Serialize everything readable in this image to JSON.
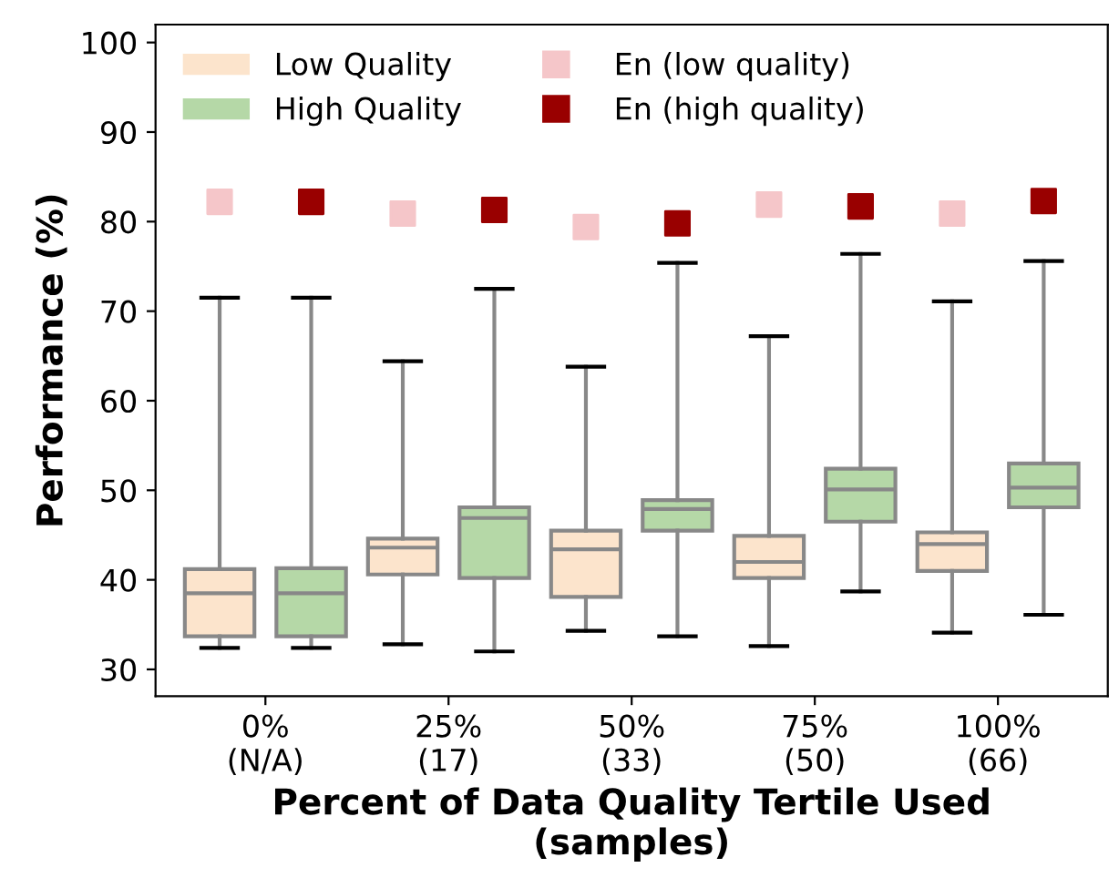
{
  "chart_data": {
    "type": "box",
    "xlabel": "Percent of Data Quality Tertile Used\n(samples)",
    "ylabel": "Performance (%)",
    "categories": [
      "0%\n(N/A)",
      "25%\n(17)",
      "50%\n(33)",
      "75%\n(50)",
      "100%\n(66)"
    ],
    "ylim": [
      27,
      102
    ],
    "yticks": [
      30,
      40,
      50,
      60,
      70,
      80,
      90,
      100
    ],
    "grid": false,
    "legend": "top left",
    "series": [
      {
        "name": "Low Quality",
        "color": "#fce4cc",
        "boxes": [
          {
            "low": 32.4,
            "q1": 33.7,
            "median": 38.5,
            "q3": 41.2,
            "high": 71.5
          },
          {
            "low": 32.8,
            "q1": 40.6,
            "median": 43.6,
            "q3": 44.6,
            "high": 64.4
          },
          {
            "low": 34.3,
            "q1": 38.1,
            "median": 43.4,
            "q3": 45.5,
            "high": 63.8
          },
          {
            "low": 32.6,
            "q1": 40.2,
            "median": 42.0,
            "q3": 44.9,
            "high": 67.2
          },
          {
            "low": 34.1,
            "q1": 41.0,
            "median": 44.0,
            "q3": 45.3,
            "high": 71.1
          }
        ]
      },
      {
        "name": "High Quality",
        "color": "#b5d8a7",
        "boxes": [
          {
            "low": 32.4,
            "q1": 33.7,
            "median": 38.5,
            "q3": 41.3,
            "high": 71.5
          },
          {
            "low": 32.0,
            "q1": 40.2,
            "median": 46.9,
            "q3": 48.1,
            "high": 72.5
          },
          {
            "low": 33.7,
            "q1": 45.5,
            "median": 47.9,
            "q3": 48.9,
            "high": 75.4
          },
          {
            "low": 38.7,
            "q1": 46.5,
            "median": 50.1,
            "q3": 52.4,
            "high": 76.4
          },
          {
            "low": 36.1,
            "q1": 48.1,
            "median": 50.3,
            "q3": 53.0,
            "high": 75.6
          }
        ]
      },
      {
        "name": "En (low quality)",
        "type": "scatter",
        "marker": "square",
        "color": "#f5c6c9",
        "x": [
          "0%\n(N/A)",
          "25%\n(17)",
          "50%\n(33)",
          "75%\n(50)",
          "100%\n(66)"
        ],
        "values": [
          82.2,
          80.9,
          79.4,
          81.9,
          80.9
        ]
      },
      {
        "name": "En (high quality)",
        "type": "scatter",
        "marker": "square",
        "color": "#990000",
        "x": [
          "0%\n(N/A)",
          "25%\n(17)",
          "50%\n(33)",
          "75%\n(50)",
          "100%\n(66)"
        ],
        "values": [
          82.2,
          81.3,
          79.8,
          81.7,
          82.3
        ]
      }
    ]
  }
}
